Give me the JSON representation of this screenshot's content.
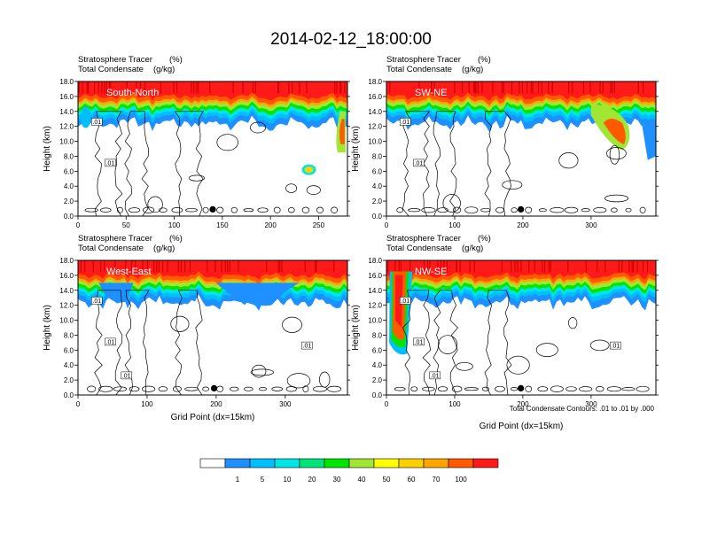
{
  "chart_data": {
    "type": "heatmap",
    "title": "2014-02-12_18:00:00",
    "contour_note": "Total Condensate Contours: .01 to .01 by .000",
    "colorbar": {
      "labels": [
        "1",
        "5",
        "10",
        "20",
        "30",
        "40",
        "50",
        "60",
        "70",
        "100"
      ],
      "colors": [
        "#ffffff",
        "#1e90ff",
        "#00bfff",
        "#00e5e5",
        "#00e57a",
        "#00e600",
        "#a0e632",
        "#ffff00",
        "#ffd000",
        "#ffa500",
        "#ff5a00",
        "#ff1a1a"
      ]
    },
    "panels": [
      {
        "name": "South-North",
        "subtitle_left": "Stratosphere Tracer",
        "subtitle_unit": "(%)",
        "subtitle2_left": "Total Condensate",
        "subtitle2_unit": "(g/kg)",
        "ylabel": "Height (km)",
        "xlabel": "",
        "xlim": [
          0,
          280
        ],
        "ylim": [
          0,
          18
        ],
        "xticks": [
          "0",
          "50",
          "100",
          "150",
          "200",
          "250"
        ],
        "xtick_values": [
          0,
          50,
          100,
          150,
          200,
          250
        ],
        "yticks": [
          "0.0",
          "2.0",
          "4.0",
          "6.0",
          "8.0",
          "10.0",
          "12.0",
          "14.0",
          "16.0",
          "18.0"
        ],
        "marker_x": 140,
        "contour_labels": [
          ".01",
          ".01"
        ]
      },
      {
        "name": "SW-NE",
        "subtitle_left": "Stratosphere Tracer",
        "subtitle_unit": "(%)",
        "subtitle2_left": "Total Condensate",
        "subtitle2_unit": "(g/kg)",
        "ylabel": "Height (km)",
        "xlabel": "",
        "xlim": [
          0,
          395
        ],
        "ylim": [
          0,
          18
        ],
        "xticks": [
          "0",
          "100",
          "200",
          "300"
        ],
        "xtick_values": [
          0,
          100,
          200,
          300
        ],
        "yticks": [
          "0.0",
          "2.0",
          "4.0",
          "6.0",
          "8.0",
          "10.0",
          "12.0",
          "14.0",
          "16.0",
          "18.0"
        ],
        "marker_x": 197,
        "contour_labels": [
          ".01",
          ".01"
        ]
      },
      {
        "name": "West-East",
        "subtitle_left": "Stratosphere Tracer",
        "subtitle_unit": "(%)",
        "subtitle2_left": "Total Condensate",
        "subtitle2_unit": "(g/kg)",
        "ylabel": "Height (km)",
        "xlabel": "Grid Point (dx=15km)",
        "xlim": [
          0,
          390
        ],
        "ylim": [
          0,
          18
        ],
        "xticks": [
          "0",
          "100",
          "200",
          "300"
        ],
        "xtick_values": [
          0,
          100,
          200,
          300
        ],
        "yticks": [
          "0.0",
          "2.0",
          "4.0",
          "6.0",
          "8.0",
          "10.0",
          "12.0",
          "14.0",
          "16.0",
          "18.0"
        ],
        "marker_x": 197,
        "contour_labels": [
          ".01",
          ".01",
          ".01",
          ".01"
        ]
      },
      {
        "name": "NW-SE",
        "subtitle_left": "Stratosphere Tracer",
        "subtitle_unit": "(%)",
        "subtitle2_left": "Total Condensate",
        "subtitle2_unit": "(g/kg)",
        "ylabel": "Height (km)",
        "xlabel": "Grid Point (dx=15km)",
        "xlim": [
          0,
          395
        ],
        "ylim": [
          0,
          18
        ],
        "xticks": [
          "0",
          "100",
          "200",
          "300"
        ],
        "xtick_values": [
          0,
          100,
          200,
          300
        ],
        "yticks": [
          "0.0",
          "2.0",
          "4.0",
          "6.0",
          "8.0",
          "10.0",
          "12.0",
          "14.0",
          "16.0",
          "18.0"
        ],
        "marker_x": 197,
        "contour_labels": [
          ".01",
          ".01",
          ".01",
          ".01"
        ]
      }
    ]
  }
}
